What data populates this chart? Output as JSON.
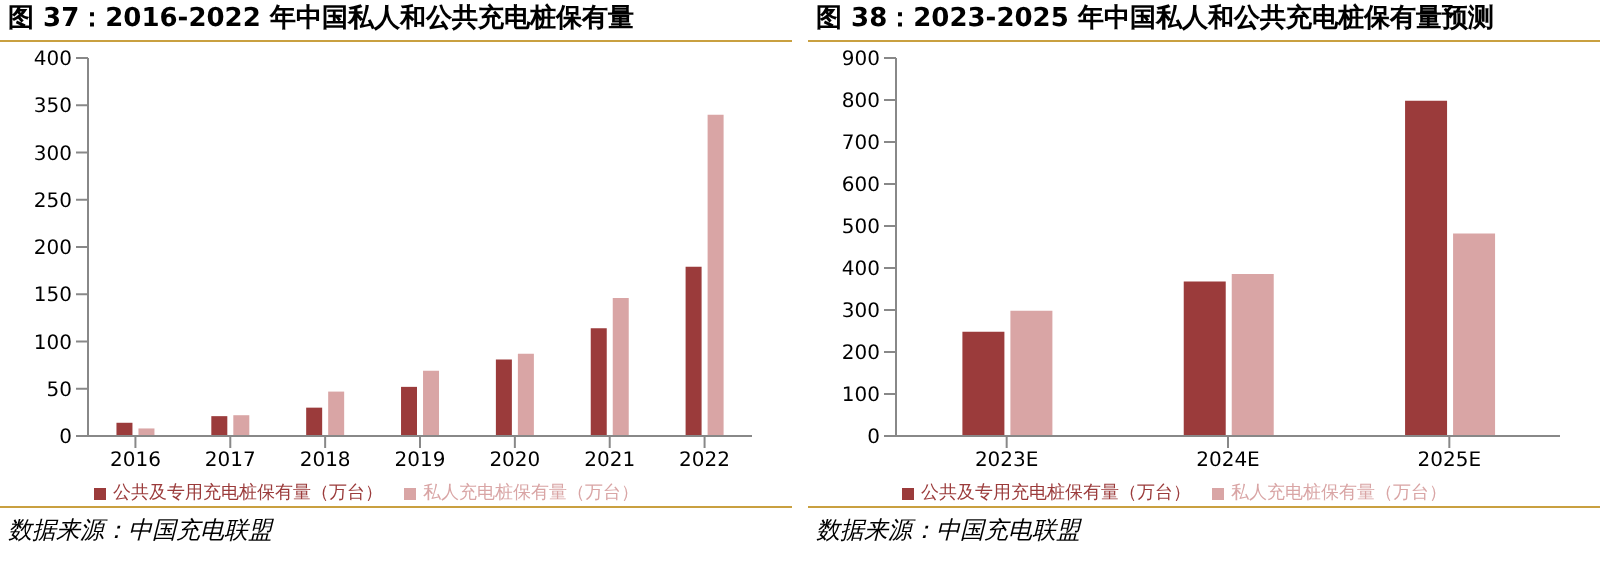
{
  "chart_data": [
    {
      "type": "bar",
      "title": "图 37：2016-2022 年中国私人和公共充电桩保有量",
      "categories": [
        "2016",
        "2017",
        "2018",
        "2019",
        "2020",
        "2021",
        "2022"
      ],
      "series": [
        {
          "name": "公共及专用充电桩保有量（万台）",
          "color": "#9b3b3b",
          "values": [
            14,
            21,
            30,
            52,
            81,
            114,
            179
          ]
        },
        {
          "name": "私人充电桩保有量（万台）",
          "color": "#d9a5a5",
          "values": [
            8,
            22,
            47,
            69,
            87,
            146,
            340
          ]
        }
      ],
      "ylim": [
        0,
        400
      ],
      "yticks": [
        0,
        50,
        100,
        150,
        200,
        250,
        300,
        350,
        400
      ],
      "legend": "bottom",
      "annotations": [
        "数据来源：中国充电联盟"
      ]
    },
    {
      "type": "bar",
      "title": "图 38：2023-2025 年中国私人和公共充电桩保有量预测",
      "categories": [
        "2023E",
        "2024E",
        "2025E"
      ],
      "series": [
        {
          "name": "公共及专用充电桩保有量（万台）",
          "color": "#9b3b3b",
          "values": [
            248,
            368,
            798
          ]
        },
        {
          "name": "私人充电桩保有量（万台）",
          "color": "#d9a5a5",
          "values": [
            298,
            386,
            482
          ]
        }
      ],
      "ylim": [
        0,
        900
      ],
      "yticks": [
        0,
        100,
        200,
        300,
        400,
        500,
        600,
        700,
        800,
        900
      ],
      "legend": "bottom",
      "annotations": [
        "数据来源：中国充电联盟"
      ]
    }
  ]
}
